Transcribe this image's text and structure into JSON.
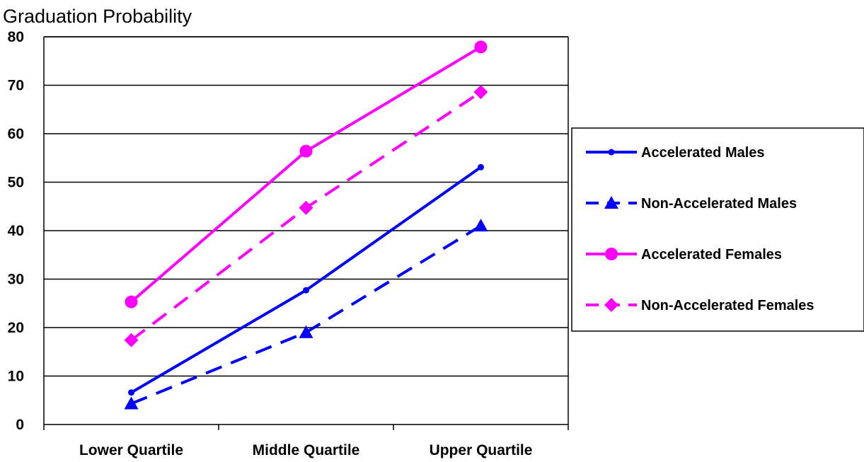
{
  "chart_data": {
    "type": "line",
    "title": "",
    "ylabel": "Graduation Probability",
    "xlabel": "",
    "categories": [
      "Lower Quartile",
      "Middle Quartile",
      "Upper Quartile"
    ],
    "ylim": [
      0,
      80
    ],
    "yticks": [
      0,
      10,
      20,
      30,
      40,
      50,
      60,
      70,
      80
    ],
    "grid": true,
    "legend_position": "right",
    "series": [
      {
        "name": "Accelerated Males",
        "values": [
          6.6,
          27.7,
          53.1
        ],
        "color": "#0000ff",
        "dash": "solid",
        "marker": "circle-small"
      },
      {
        "name": "Non-Accelerated Males",
        "values": [
          4.3,
          19.0,
          41.0
        ],
        "color": "#0000ff",
        "dash": "dashed",
        "marker": "triangle"
      },
      {
        "name": "Accelerated Females",
        "values": [
          25.3,
          56.4,
          77.9
        ],
        "color": "#ff00ff",
        "dash": "solid",
        "marker": "circle-large"
      },
      {
        "name": "Non-Accelerated Females",
        "values": [
          17.4,
          44.7,
          68.6
        ],
        "color": "#ff00ff",
        "dash": "dashed",
        "marker": "diamond"
      }
    ]
  }
}
